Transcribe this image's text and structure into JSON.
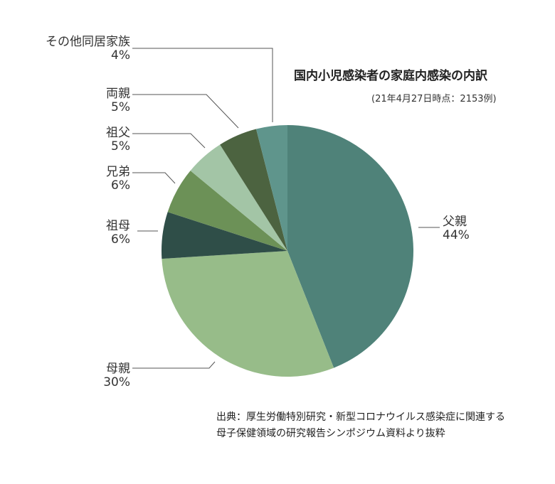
{
  "chart_data": {
    "type": "pie",
    "title": "国内小児感染者の家庭内感染の内訳",
    "subtitle": "(21年4月27日時点：2153例)",
    "start_angle": "12 o'clock",
    "direction": "clockwise",
    "legend": "none (leader-line labels)",
    "slices": [
      {
        "label": "父親",
        "value": 44,
        "value_label": "44%",
        "color": "#4f8279"
      },
      {
        "label": "母親",
        "value": 30,
        "value_label": "30%",
        "color": "#97bc89"
      },
      {
        "label": "祖母",
        "value": 6,
        "value_label": "6%",
        "color": "#2f4e48"
      },
      {
        "label": "兄弟",
        "value": 6,
        "value_label": "6%",
        "color": "#6c9157"
      },
      {
        "label": "祖父",
        "value": 5,
        "value_label": "5%",
        "color": "#a3c5a6"
      },
      {
        "label": "両親",
        "value": 5,
        "value_label": "5%",
        "color": "#4c6340"
      },
      {
        "label": "その他同居家族",
        "value": 4,
        "value_label": "4%",
        "color": "#5f958c"
      }
    ]
  },
  "source": {
    "line1": "出典：厚生労働特別研究・新型コロナウイルス感染症に関連する",
    "line2": "母子保健領域の研究報告シンポジウム資料より抜粋"
  }
}
